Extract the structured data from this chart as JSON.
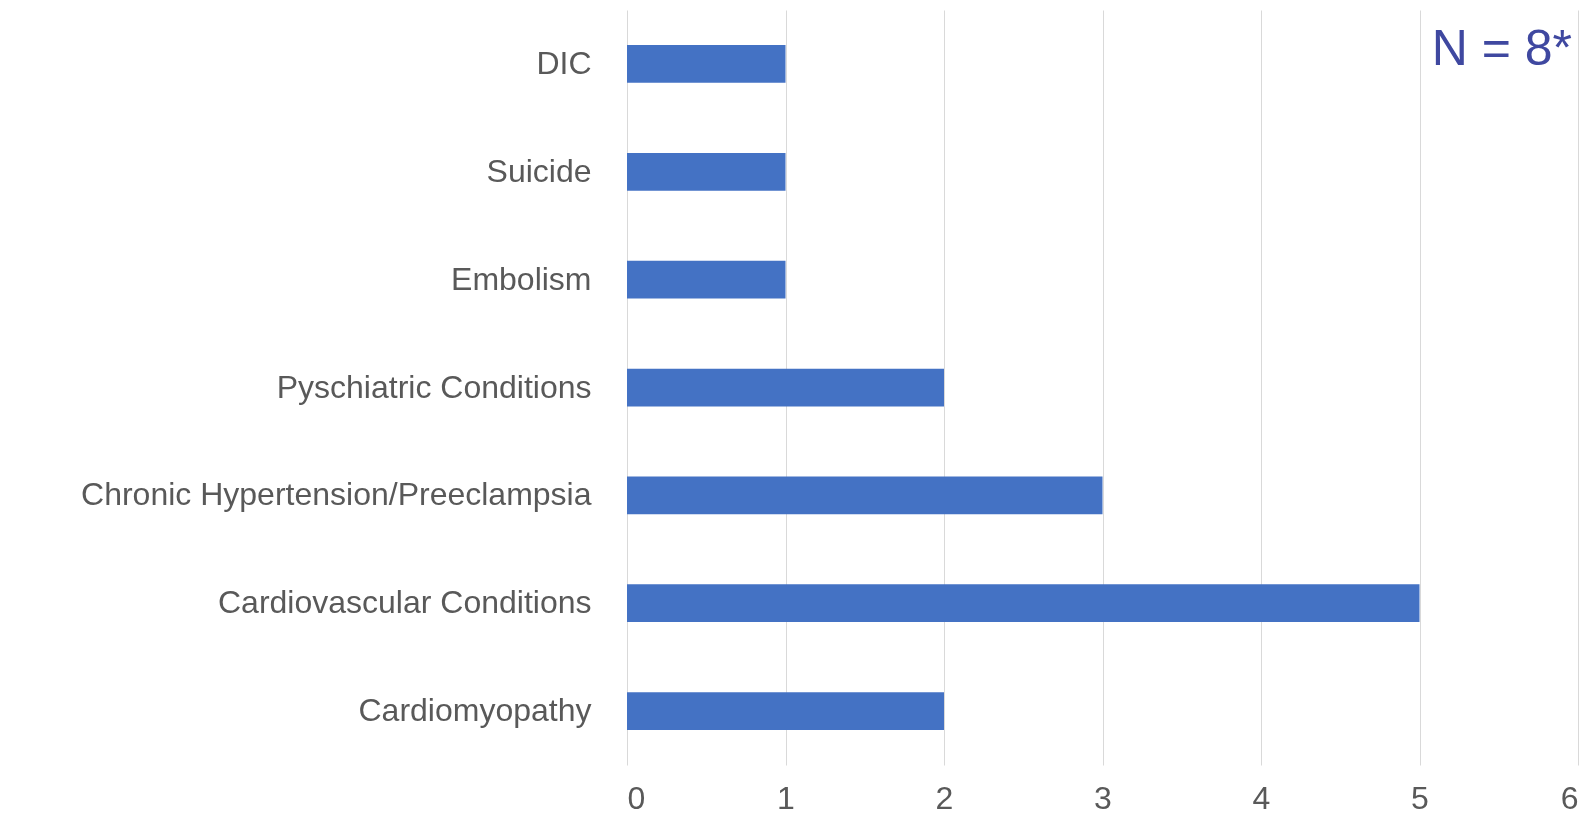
{
  "chart_data": {
    "type": "bar",
    "orientation": "horizontal",
    "categories": [
      "DIC",
      "Suicide",
      "Embolism",
      "Pyschiatric Conditions",
      "Chronic Hypertension/Preeclampsia",
      "Cardiovascular Conditions",
      "Cardiomyopathy"
    ],
    "values": [
      1,
      1,
      1,
      2,
      3,
      5,
      2
    ],
    "color": "#4472c4",
    "xlim": [
      0,
      6
    ],
    "xticks": [
      0,
      1,
      2,
      3,
      4,
      5,
      6
    ],
    "grid": "x",
    "annotations": [
      "N = 8*"
    ]
  }
}
